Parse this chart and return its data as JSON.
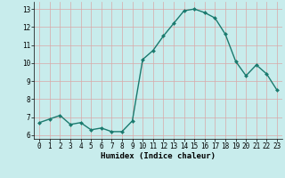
{
  "x": [
    0,
    1,
    2,
    3,
    4,
    5,
    6,
    7,
    8,
    9,
    10,
    11,
    12,
    13,
    14,
    15,
    16,
    17,
    18,
    19,
    20,
    21,
    22,
    23
  ],
  "y": [
    6.7,
    6.9,
    7.1,
    6.6,
    6.7,
    6.3,
    6.4,
    6.2,
    6.2,
    6.8,
    10.2,
    10.7,
    11.5,
    12.2,
    12.9,
    13.0,
    12.8,
    12.5,
    11.6,
    10.1,
    9.3,
    9.9,
    9.4,
    8.5
  ],
  "line_color": "#1a7a6e",
  "marker_color": "#1a7a6e",
  "bg_color": "#c8ecec",
  "grid_color": "#e0b8b8",
  "xlabel": "Humidex (Indice chaleur)",
  "xlim": [
    -0.5,
    23.5
  ],
  "ylim": [
    5.8,
    13.4
  ],
  "yticks": [
    6,
    7,
    8,
    9,
    10,
    11,
    12,
    13
  ],
  "xticks": [
    0,
    1,
    2,
    3,
    4,
    5,
    6,
    7,
    8,
    9,
    10,
    11,
    12,
    13,
    14,
    15,
    16,
    17,
    18,
    19,
    20,
    21,
    22,
    23
  ],
  "xtick_labels": [
    "0",
    "1",
    "2",
    "3",
    "4",
    "5",
    "6",
    "7",
    "8",
    "9",
    "10",
    "11",
    "12",
    "13",
    "14",
    "15",
    "16",
    "17",
    "18",
    "19",
    "20",
    "21",
    "22",
    "23"
  ],
  "label_fontsize": 6.5,
  "tick_fontsize": 5.5,
  "linewidth": 1.0,
  "markersize": 2.0
}
